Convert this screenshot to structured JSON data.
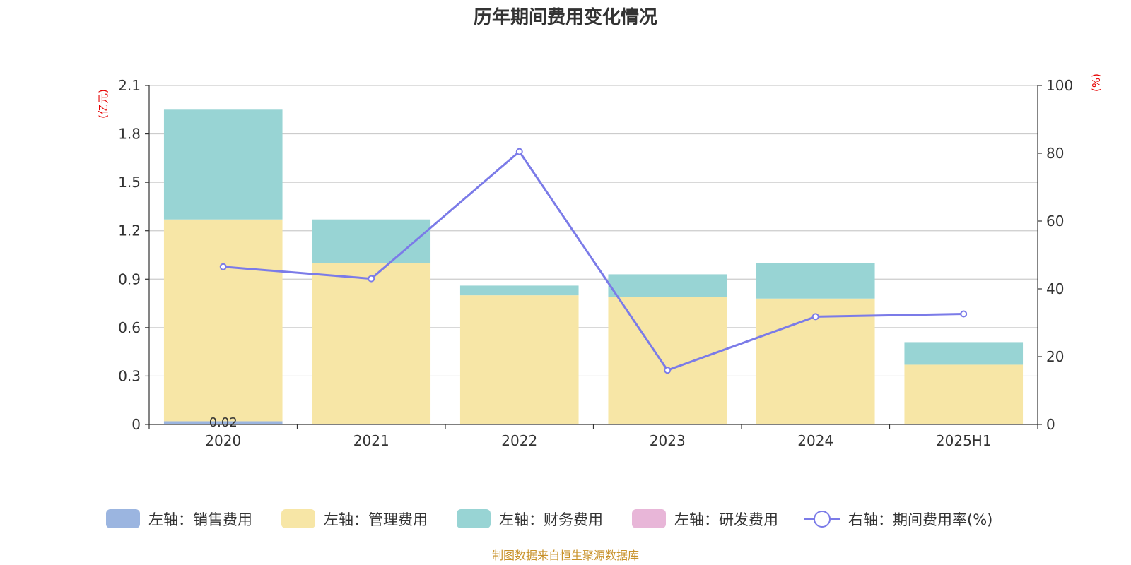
{
  "chart_data": {
    "type": "bar",
    "title": "历年期间费用变化情况",
    "categories": [
      "2020",
      "2021",
      "2022",
      "2023",
      "2024",
      "2025H1"
    ],
    "stacked": true,
    "y_left": {
      "unit": "(亿元)",
      "ylim": [
        0,
        2.1
      ],
      "ticks": [
        "0",
        "0.3",
        "0.6",
        "0.9",
        "1.2",
        "1.5",
        "1.8",
        "2.1"
      ]
    },
    "y_right": {
      "unit": "(%)",
      "ylim": [
        0,
        100
      ],
      "ticks": [
        "0",
        "20",
        "40",
        "60",
        "80",
        "100"
      ]
    },
    "series": [
      {
        "name": "左轴：销售费用",
        "type": "bar",
        "axis": "left",
        "color": "#9bb5e0",
        "values": [
          0.02,
          0,
          0,
          0,
          0,
          0
        ]
      },
      {
        "name": "左轴：管理费用",
        "type": "bar",
        "axis": "left",
        "color": "#f7e6a6",
        "values": [
          1.25,
          1.0,
          0.8,
          0.79,
          0.78,
          0.37
        ]
      },
      {
        "name": "左轴：财务费用",
        "type": "bar",
        "axis": "left",
        "color": "#98d4d4",
        "values": [
          0.68,
          0.27,
          0.06,
          0.14,
          0.22,
          0.14
        ]
      },
      {
        "name": "左轴：研发费用",
        "type": "bar",
        "axis": "left",
        "color": "#e8b6d8",
        "values": [
          0,
          0,
          0,
          0,
          0,
          0
        ]
      },
      {
        "name": "右轴：期间费用率(%)",
        "type": "line",
        "axis": "right",
        "color": "#7b7be8",
        "values": [
          46.5,
          43.0,
          80.5,
          16.0,
          31.8,
          32.6
        ]
      }
    ],
    "data_labels": [
      {
        "category": "2020",
        "text": "0.02"
      }
    ],
    "grid": true,
    "legend_position": "bottom"
  },
  "footer": {
    "source": "制图数据来自恒生聚源数据库",
    "source_color": "#c8922a"
  }
}
